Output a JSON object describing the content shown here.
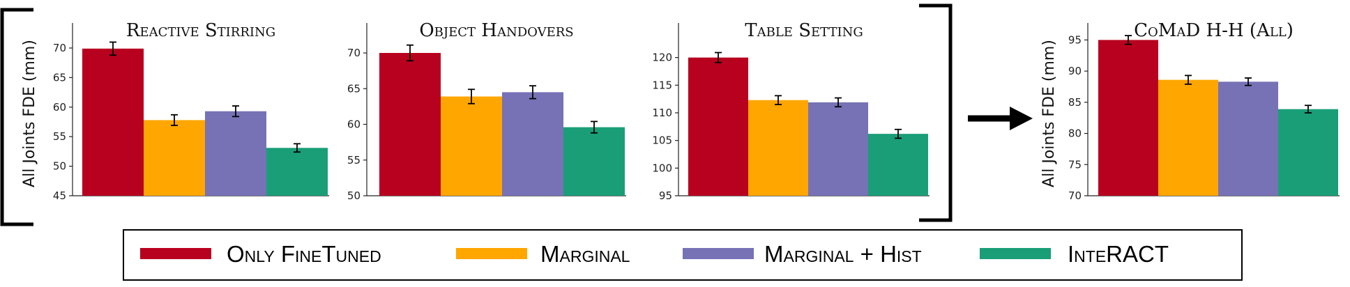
{
  "colors": {
    "Only FineTuned": "#b8001f",
    "Marginal": "#ffa600",
    "Marginal + Hist": "#7672b5",
    "InteRACT": "#1a9e77"
  },
  "legend": [
    "Only FineTuned",
    "Marginal",
    "Marginal + Hist",
    "InteRACT"
  ],
  "ylabel": "All Joints FDE (mm)",
  "chart_data": [
    {
      "type": "bar",
      "title": "Reactive Stirring",
      "categories": [
        "Only FineTuned",
        "Marginal",
        "Marginal + Hist",
        "InteRACT"
      ],
      "values": [
        69.9,
        57.8,
        59.3,
        53.1
      ],
      "errors": [
        1.1,
        0.9,
        0.9,
        0.7
      ],
      "ylim": [
        45,
        74
      ],
      "yticks": [
        45,
        50,
        55,
        60,
        65,
        70
      ]
    },
    {
      "type": "bar",
      "title": "Object Handovers",
      "categories": [
        "Only FineTuned",
        "Marginal",
        "Marginal + Hist",
        "InteRACT"
      ],
      "values": [
        70.0,
        63.9,
        64.5,
        59.6
      ],
      "errors": [
        1.1,
        1.0,
        0.9,
        0.8
      ],
      "ylim": [
        50,
        74
      ],
      "yticks": [
        50,
        55,
        60,
        65,
        70
      ]
    },
    {
      "type": "bar",
      "title": "Table Setting",
      "categories": [
        "Only FineTuned",
        "Marginal",
        "Marginal + Hist",
        "InteRACT"
      ],
      "values": [
        120.0,
        112.3,
        111.9,
        106.2
      ],
      "errors": [
        0.9,
        0.8,
        0.8,
        0.8
      ],
      "ylim": [
        95,
        126
      ],
      "yticks": [
        95,
        100,
        105,
        110,
        115,
        120
      ]
    },
    {
      "type": "bar",
      "title": "CoMaD H-H (All)",
      "categories": [
        "Only FineTuned",
        "Marginal",
        "Marginal + Hist",
        "InteRACT"
      ],
      "values": [
        95.0,
        88.6,
        88.3,
        83.9
      ],
      "errors": [
        0.7,
        0.7,
        0.6,
        0.6
      ],
      "ylim": [
        70,
        97.5
      ],
      "yticks": [
        70,
        75,
        80,
        85,
        90,
        95
      ]
    }
  ]
}
